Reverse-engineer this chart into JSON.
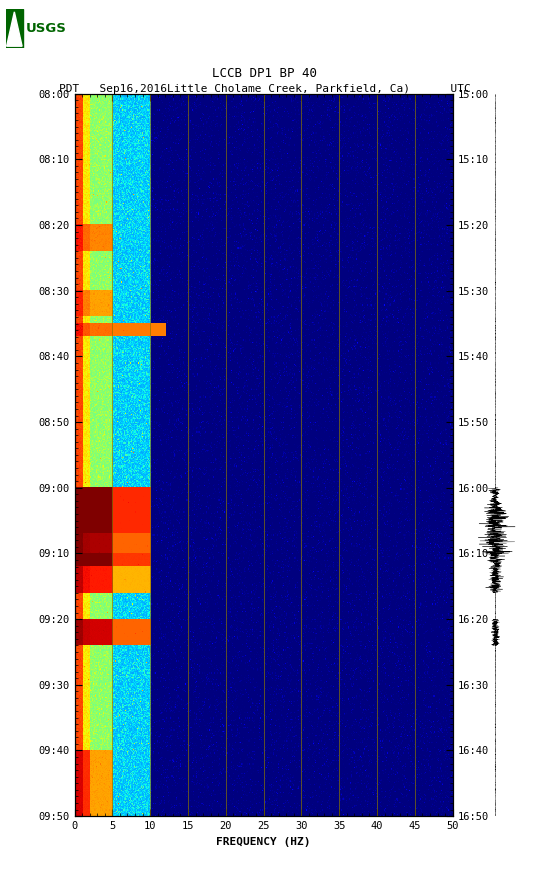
{
  "title_line1": "LCCB DP1 BP 40",
  "title_line2_pdt": "PDT   Sep16,2016",
  "title_line2_loc": "Little Cholame Creek, Parkfield, Ca)",
  "title_line2_utc": "UTC",
  "xlabel": "FREQUENCY (HZ)",
  "freq_min": 0,
  "freq_max": 50,
  "freq_ticks": [
    0,
    5,
    10,
    15,
    20,
    25,
    30,
    35,
    40,
    45,
    50
  ],
  "time_labels_pdt": [
    "08:00",
    "08:10",
    "08:20",
    "08:30",
    "08:40",
    "08:50",
    "09:00",
    "09:10",
    "09:20",
    "09:30",
    "09:40",
    "09:50"
  ],
  "time_labels_utc": [
    "15:00",
    "15:10",
    "15:20",
    "15:30",
    "15:40",
    "15:50",
    "16:00",
    "16:10",
    "16:20",
    "16:30",
    "16:40",
    "16:50"
  ],
  "grid_freq_lines": [
    5,
    10,
    15,
    20,
    25,
    30,
    35,
    40,
    45
  ],
  "background_color": "#ffffff",
  "fig_width": 5.52,
  "fig_height": 8.92,
  "colormap": "jet",
  "n_time": 660,
  "n_freq": 500,
  "total_minutes": 110
}
